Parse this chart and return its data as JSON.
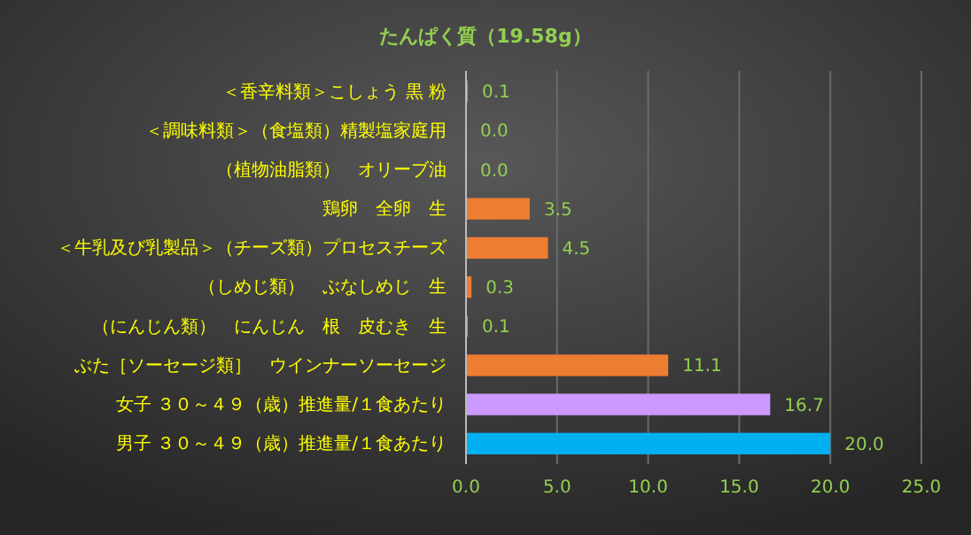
{
  "chart_data": {
    "type": "bar",
    "orientation": "horizontal",
    "title": "たんぱく質（19.58g）",
    "categories": [
      "＜香辛料類＞こしょう 黒 粉",
      "＜調味料類＞（食塩類）精製塩家庭用",
      "（植物油脂類）　オリーブ油",
      "鶏卵　全卵　生",
      "＜牛乳及び乳製品＞（チーズ類）プロセスチーズ",
      "（しめじ類）　ぶなしめじ　生",
      "（にんじん類）　にんじん　根　皮むき　生",
      "ぶた［ソーセージ類］　ウインナーソーセージ",
      "女子 ３０～４９（歳）推進量/１食あたり",
      "男子 ３０～４９（歳）推進量/１食あたり"
    ],
    "values": [
      0.1,
      0.0,
      0.0,
      3.5,
      4.5,
      0.3,
      0.1,
      11.1,
      16.7,
      20.0
    ],
    "value_labels": [
      "0.1",
      "0.0",
      "0.0",
      "3.5",
      "4.5",
      "0.3",
      "0.1",
      "11.1",
      "16.7",
      "20.0"
    ],
    "colors": [
      "#ed7d31",
      "#ed7d31",
      "#ed7d31",
      "#ed7d31",
      "#ed7d31",
      "#ed7d31",
      "#ed7d31",
      "#ed7d31",
      "#cc99ff",
      "#00b0f0"
    ],
    "xlim": [
      0,
      25
    ],
    "xticks": [
      {
        "value": 0,
        "label": "0.0"
      },
      {
        "value": 5,
        "label": "5.0"
      },
      {
        "value": 10,
        "label": "10.0"
      },
      {
        "value": 15,
        "label": "15.0"
      },
      {
        "value": 20,
        "label": "20.0"
      },
      {
        "value": 25,
        "label": "25.0"
      }
    ],
    "grid": "x"
  }
}
